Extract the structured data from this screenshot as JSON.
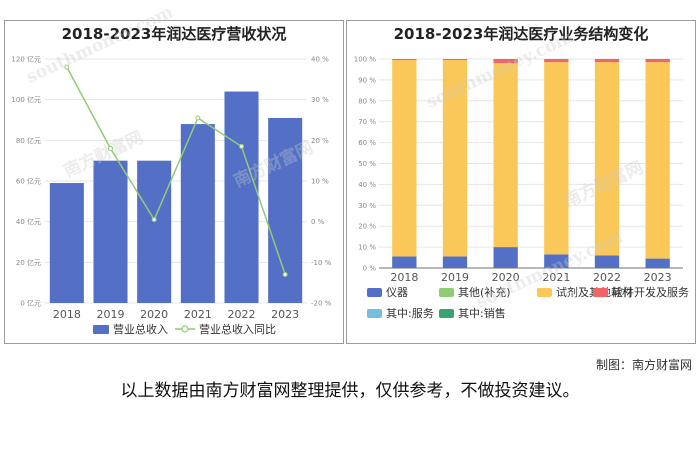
{
  "chart_data": [
    {
      "type": "bar",
      "title": "2018-2023年润达医疗营收状况",
      "categories": [
        "2018",
        "2019",
        "2020",
        "2021",
        "2022",
        "2023"
      ],
      "series": [
        {
          "name": "营业总收入",
          "type": "bar",
          "axis": "left",
          "values": [
            59,
            70,
            70,
            88,
            104,
            91
          ]
        },
        {
          "name": "营业总收入同比",
          "type": "line",
          "axis": "right",
          "values": [
            38,
            18,
            0.5,
            25.5,
            18.5,
            -13
          ]
        }
      ],
      "left_ticks": [
        "0 亿元",
        "20 亿元",
        "40 亿元",
        "60 亿元",
        "80 亿元",
        "100 亿元",
        "120 亿元"
      ],
      "right_ticks": [
        "-20 %",
        "-10 %",
        "0 %",
        "10 %",
        "20 %",
        "30 %",
        "40 %"
      ],
      "ylim_left": [
        0,
        120
      ],
      "ylim_right": [
        -20,
        40
      ],
      "legend_position": "bottom",
      "colors": {
        "bar": "#5470c6",
        "line": "#91cc75"
      }
    },
    {
      "type": "bar",
      "stacked": true,
      "title": "2018-2023年润达医疗业务结构变化",
      "categories": [
        "2018",
        "2019",
        "2020",
        "2021",
        "2022",
        "2023"
      ],
      "series": [
        {
          "name": "仪器",
          "values": [
            5.5,
            5.5,
            10,
            6.5,
            6,
            4.5
          ],
          "color": "#5470c6"
        },
        {
          "name": "其他(补充)",
          "values": [
            0,
            0,
            0,
            0,
            0,
            0
          ],
          "color": "#91cc75"
        },
        {
          "name": "试剂及其他耗材",
          "values": [
            94,
            94,
            88,
            92,
            92.5,
            94
          ],
          "color": "#fac858"
        },
        {
          "name": "软件开发及服务",
          "values": [
            0.5,
            0.5,
            2,
            1.5,
            1.5,
            1.5
          ],
          "color": "#ee6666"
        },
        {
          "name": "其中:服务",
          "values": [
            0,
            0,
            0,
            0,
            0,
            0
          ],
          "color": "#73c0de"
        },
        {
          "name": "其中:销售",
          "values": [
            0,
            0,
            0,
            0,
            0,
            0
          ],
          "color": "#3ba272"
        }
      ],
      "y_ticks": [
        "0 %",
        "10 %",
        "20 %",
        "30 %",
        "40 %",
        "50 %",
        "60 %",
        "70 %",
        "80 %",
        "90 %",
        "100 %"
      ],
      "ylim": [
        0,
        100
      ],
      "legend_position": "bottom"
    }
  ],
  "watermark": {
    "cn": "南方财富网",
    "en": "southmoney.com"
  },
  "footer": {
    "credit": "制图：南方财富网",
    "disclaimer": "以上数据由南方财富网整理提供，仅供参考，不做投资建议。"
  }
}
